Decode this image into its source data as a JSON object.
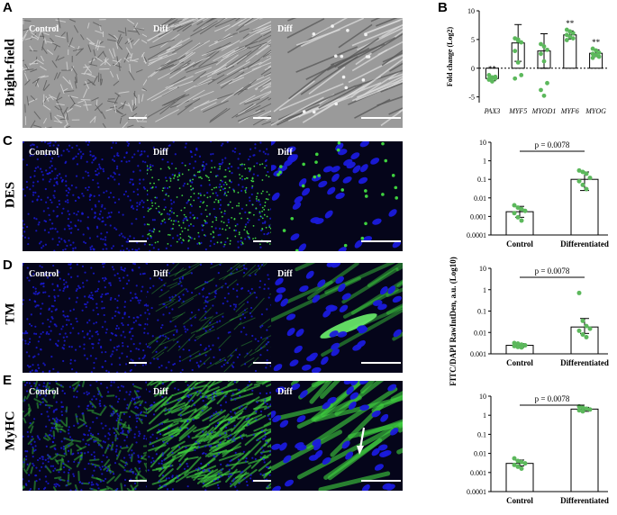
{
  "panels": {
    "A": "A",
    "B": "B",
    "C": "C",
    "D": "D",
    "E": "E"
  },
  "row_labels": {
    "bf": "Bright-field",
    "des": "DES",
    "tm": "TM",
    "myhc": "MyHC"
  },
  "captions": {
    "control": "Control",
    "diff": "Diff"
  },
  "colors": {
    "bf_bg": "#9a9a9a",
    "fluor_bg": "#05051a",
    "dapi": "#1a1adc",
    "fitc": "#3fd23f",
    "dot": "#5cb85c"
  },
  "shared_ylabel": "FITC/DAPI RawIntDen, a.u. (Log10)",
  "chart_data": [
    {
      "type": "bar",
      "panel": "B",
      "categories": [
        "PAX3",
        "MYF5",
        "MYOD1",
        "MYF6",
        "MYOG"
      ],
      "values": [
        -1.8,
        4.4,
        3.0,
        5.8,
        2.6
      ],
      "errors": [
        0.4,
        3.2,
        3.0,
        0.7,
        0.6
      ],
      "points": [
        [
          -1.2,
          -1.6,
          -1.8,
          -2.0,
          -2.3,
          -1.5,
          -1.9
        ],
        [
          5.2,
          4.8,
          4.5,
          3.0,
          1.0,
          -1.2,
          -1.8,
          5.0
        ],
        [
          4.2,
          3.8,
          3.2,
          2.5,
          1.2,
          -2.6,
          -3.8,
          -4.8
        ],
        [
          6.7,
          6.4,
          6.1,
          5.8,
          5.5,
          5.2,
          4.9
        ],
        [
          3.4,
          3.1,
          2.7,
          2.5,
          2.3,
          2.0,
          1.8
        ]
      ],
      "significance": [
        "**",
        "",
        "",
        "**",
        "**"
      ],
      "ylabel": "Fold change (Log2)",
      "yticks": [
        "-5",
        "0",
        "5",
        "10"
      ],
      "ylim": [
        -6,
        10
      ],
      "grid": false
    },
    {
      "type": "bar",
      "panel": "C",
      "categories": [
        "Control",
        "Differentiated"
      ],
      "values": [
        0.0018,
        0.1
      ],
      "err_low": [
        0.0009,
        0.025
      ],
      "err_high": [
        0.0035,
        0.25
      ],
      "points": [
        [
          0.004,
          0.003,
          0.0025,
          0.002,
          0.0015,
          0.0009,
          0.0006
        ],
        [
          0.3,
          0.25,
          0.2,
          0.12,
          0.08,
          0.05,
          0.03
        ]
      ],
      "pvalue": "p = 0.0078",
      "yticks": [
        "10",
        "1",
        "0.1",
        "0.01",
        "0.001",
        "0.0001"
      ],
      "scale": "log",
      "ylim": [
        0.0001,
        10
      ]
    },
    {
      "type": "bar",
      "panel": "D",
      "categories": [
        "Control",
        "Differentiated"
      ],
      "values": [
        0.0025,
        0.018
      ],
      "err_low": [
        0.002,
        0.009
      ],
      "err_high": [
        0.003,
        0.045
      ],
      "points": [
        [
          0.0032,
          0.003,
          0.0027,
          0.0025,
          0.0023,
          0.0021,
          0.002
        ],
        [
          0.7,
          0.035,
          0.02,
          0.015,
          0.012,
          0.008,
          0.006
        ]
      ],
      "pvalue": "p = 0.0078",
      "yticks": [
        "10",
        "1",
        "0.1",
        "0.01",
        "0.001"
      ],
      "scale": "log",
      "ylim": [
        0.001,
        10
      ]
    },
    {
      "type": "bar",
      "panel": "E",
      "categories": [
        "Control",
        "Differentiated"
      ],
      "values": [
        0.003,
        2.1
      ],
      "err_low": [
        0.0022,
        1.6
      ],
      "err_high": [
        0.0045,
        2.6
      ],
      "points": [
        [
          0.0055,
          0.004,
          0.0035,
          0.003,
          0.0025,
          0.002,
          0.0016
        ],
        [
          2.9,
          2.5,
          2.2,
          2.0,
          1.8,
          1.6
        ]
      ],
      "pvalue": "p = 0.0078",
      "yticks": [
        "10",
        "1",
        "0.1",
        "0.01",
        "0.001",
        "0.0001"
      ],
      "scale": "log",
      "ylim": [
        0.0001,
        10
      ]
    }
  ]
}
